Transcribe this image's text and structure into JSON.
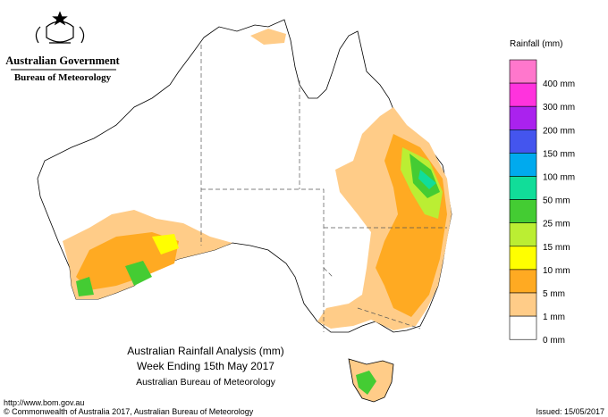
{
  "header": {
    "government": "Australian Government",
    "bureau": "Bureau of Meteorology"
  },
  "map": {
    "title": "Australian Rainfall Analysis (mm)",
    "subtitle": "Week Ending 15th May 2017",
    "source": "Australian Bureau of Meteorology"
  },
  "legend": {
    "title": "Rainfall (mm)",
    "items": [
      {
        "color": "#ff77cc",
        "label": "400 mm"
      },
      {
        "color": "#ff33dd",
        "label": "300 mm"
      },
      {
        "color": "#aa22ee",
        "label": "200 mm"
      },
      {
        "color": "#4455ee",
        "label": "150 mm"
      },
      {
        "color": "#00aaee",
        "label": "100 mm"
      },
      {
        "color": "#11dd99",
        "label": "50 mm"
      },
      {
        "color": "#44cc33",
        "label": "25 mm"
      },
      {
        "color": "#bbee33",
        "label": "15 mm"
      },
      {
        "color": "#ffff00",
        "label": "10 mm"
      },
      {
        "color": "#ffaa22",
        "label": "5 mm"
      },
      {
        "color": "#ffcc88",
        "label": "1 mm"
      },
      {
        "color": "#ffffff",
        "label": "0 mm"
      }
    ]
  },
  "footer": {
    "url": "http://www.bom.gov.au",
    "copyright": "© Commonwealth of Australia 2017, Australian Bureau of Meteorology",
    "issued": "Issued: 15/05/2017"
  }
}
